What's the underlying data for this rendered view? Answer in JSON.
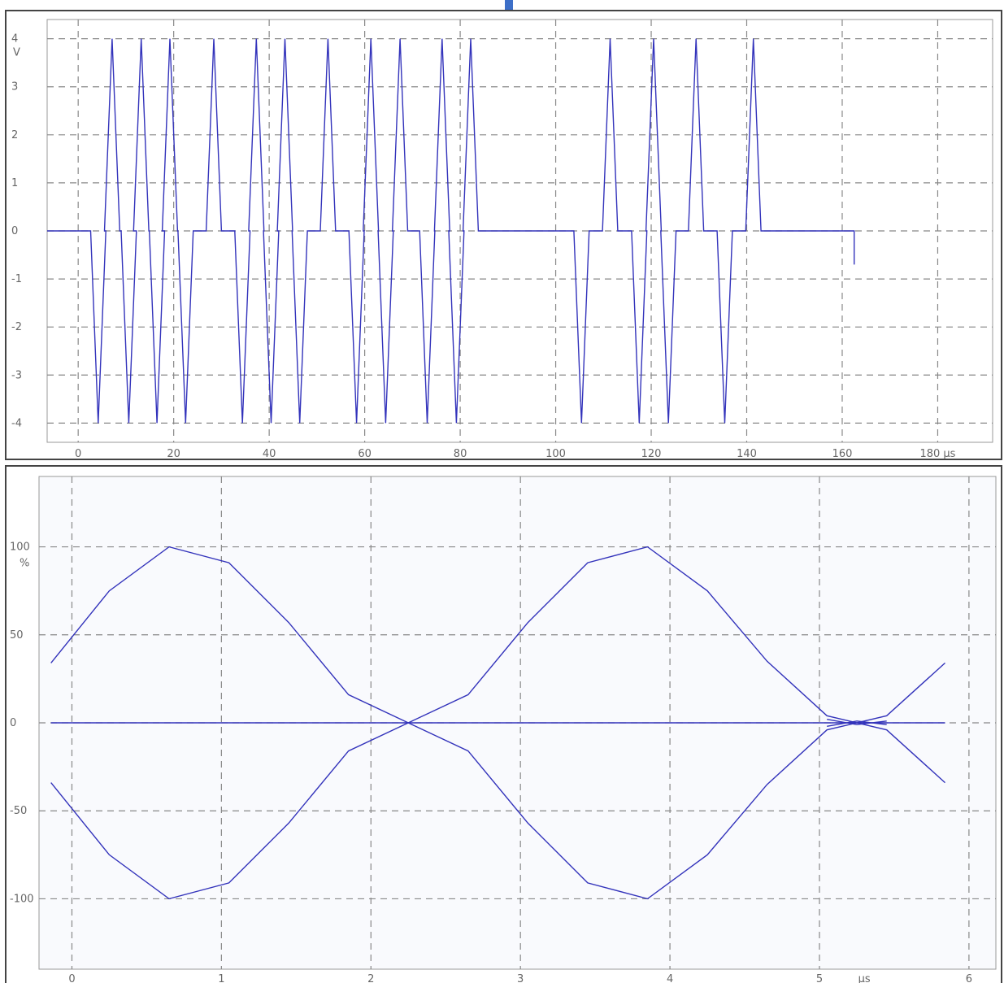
{
  "chart_data": [
    {
      "type": "line",
      "title": "",
      "xlabel": "",
      "ylabel": "",
      "x_unit": "µs",
      "y_unit": "V",
      "xlim": [
        -6.5,
        191.5
      ],
      "ylim": [
        -4.4,
        4.4
      ],
      "x_ticks": [
        0,
        20,
        40,
        60,
        80,
        100,
        120,
        140,
        160,
        180
      ],
      "x_tick_labels": [
        "0",
        "20",
        "40",
        "60",
        "80",
        "100",
        "120",
        "140",
        "160",
        "180 µs"
      ],
      "y_ticks": [
        4,
        3,
        2,
        1,
        0,
        -1,
        -2,
        -3,
        -4
      ],
      "y_tick_labels": [
        "4",
        "3",
        "2",
        "1",
        "0",
        "-1",
        "-2",
        "-3",
        "-4"
      ],
      "grid": true,
      "line_color": "#3333bb",
      "series": [
        {
          "pulses": [
            {
              "t": 4.2,
              "level": -4
            },
            {
              "t": 7.1,
              "level": 4
            },
            {
              "t": 10.6,
              "level": -4
            },
            {
              "t": 13.2,
              "level": 4
            },
            {
              "t": 16.5,
              "level": -4
            },
            {
              "t": 19.2,
              "level": 4
            },
            {
              "t": 22.5,
              "level": -4
            },
            {
              "t": 28.4,
              "level": 4
            },
            {
              "t": 34.4,
              "level": -4
            },
            {
              "t": 37.3,
              "level": 4
            },
            {
              "t": 40.4,
              "level": -4
            },
            {
              "t": 43.3,
              "level": 4
            },
            {
              "t": 46.4,
              "level": -4
            },
            {
              "t": 52.3,
              "level": 4
            },
            {
              "t": 58.3,
              "level": -4
            },
            {
              "t": 61.3,
              "level": 4
            },
            {
              "t": 64.4,
              "level": -4
            },
            {
              "t": 67.4,
              "level": 4
            },
            {
              "t": 73.1,
              "level": -4
            },
            {
              "t": 76.2,
              "level": 4
            },
            {
              "t": 79.2,
              "level": -4
            },
            {
              "t": 82.2,
              "level": 4
            },
            {
              "t": 105.4,
              "level": -4
            },
            {
              "t": 111.4,
              "level": 4
            },
            {
              "t": 117.5,
              "level": -4
            },
            {
              "t": 120.5,
              "level": 4
            },
            {
              "t": 123.6,
              "level": -4
            },
            {
              "t": 129.4,
              "level": 4
            },
            {
              "t": 135.4,
              "level": -4
            },
            {
              "t": 141.4,
              "level": 4
            }
          ],
          "end": {
            "t": 162.5,
            "v": -0.7
          }
        }
      ]
    },
    {
      "type": "line",
      "title": "",
      "xlabel": "",
      "ylabel": "",
      "x_unit": "µs",
      "y_unit": "%",
      "xlim": [
        -0.22,
        6.18
      ],
      "ylim": [
        -140,
        140
      ],
      "x_ticks": [
        0,
        1,
        2,
        3,
        4,
        5,
        6
      ],
      "x_tick_labels": [
        "0",
        "1",
        "2",
        "3",
        "4",
        "5",
        "6"
      ],
      "y_ticks": [
        100,
        50,
        0,
        -50,
        -100
      ],
      "y_tick_labels": [
        "100",
        "50",
        "0",
        "-50",
        "-100"
      ],
      "grid": true,
      "line_color": "#3333bb",
      "series": [
        {
          "x": [
            -0.14,
            0.25,
            0.65,
            1.05,
            1.45,
            1.85,
            2.25,
            2.65,
            3.05,
            3.45,
            3.85,
            4.25,
            4.65,
            5.05,
            5.45,
            5.84
          ],
          "y": [
            34,
            75,
            100,
            91,
            57,
            16,
            0,
            -16,
            -57,
            -91,
            -100,
            -75,
            -35,
            -4,
            4,
            34
          ]
        },
        {
          "x": [
            -0.14,
            0.25,
            0.65,
            1.05,
            1.45,
            1.85,
            2.25,
            2.65,
            3.05,
            3.45,
            3.85,
            4.25,
            4.65,
            5.05,
            5.45,
            5.84
          ],
          "y": [
            -34,
            -75,
            -100,
            -91,
            -57,
            -16,
            0,
            16,
            57,
            91,
            100,
            75,
            35,
            4,
            -4,
            -34
          ]
        },
        {
          "x": [
            -0.14,
            5.84
          ],
          "y": [
            0,
            0
          ]
        },
        {
          "x": [
            5.05,
            5.25,
            5.45
          ],
          "y": [
            -2,
            1,
            -1
          ]
        },
        {
          "x": [
            5.05,
            5.25,
            5.45
          ],
          "y": [
            2,
            -1,
            1
          ]
        }
      ]
    }
  ]
}
